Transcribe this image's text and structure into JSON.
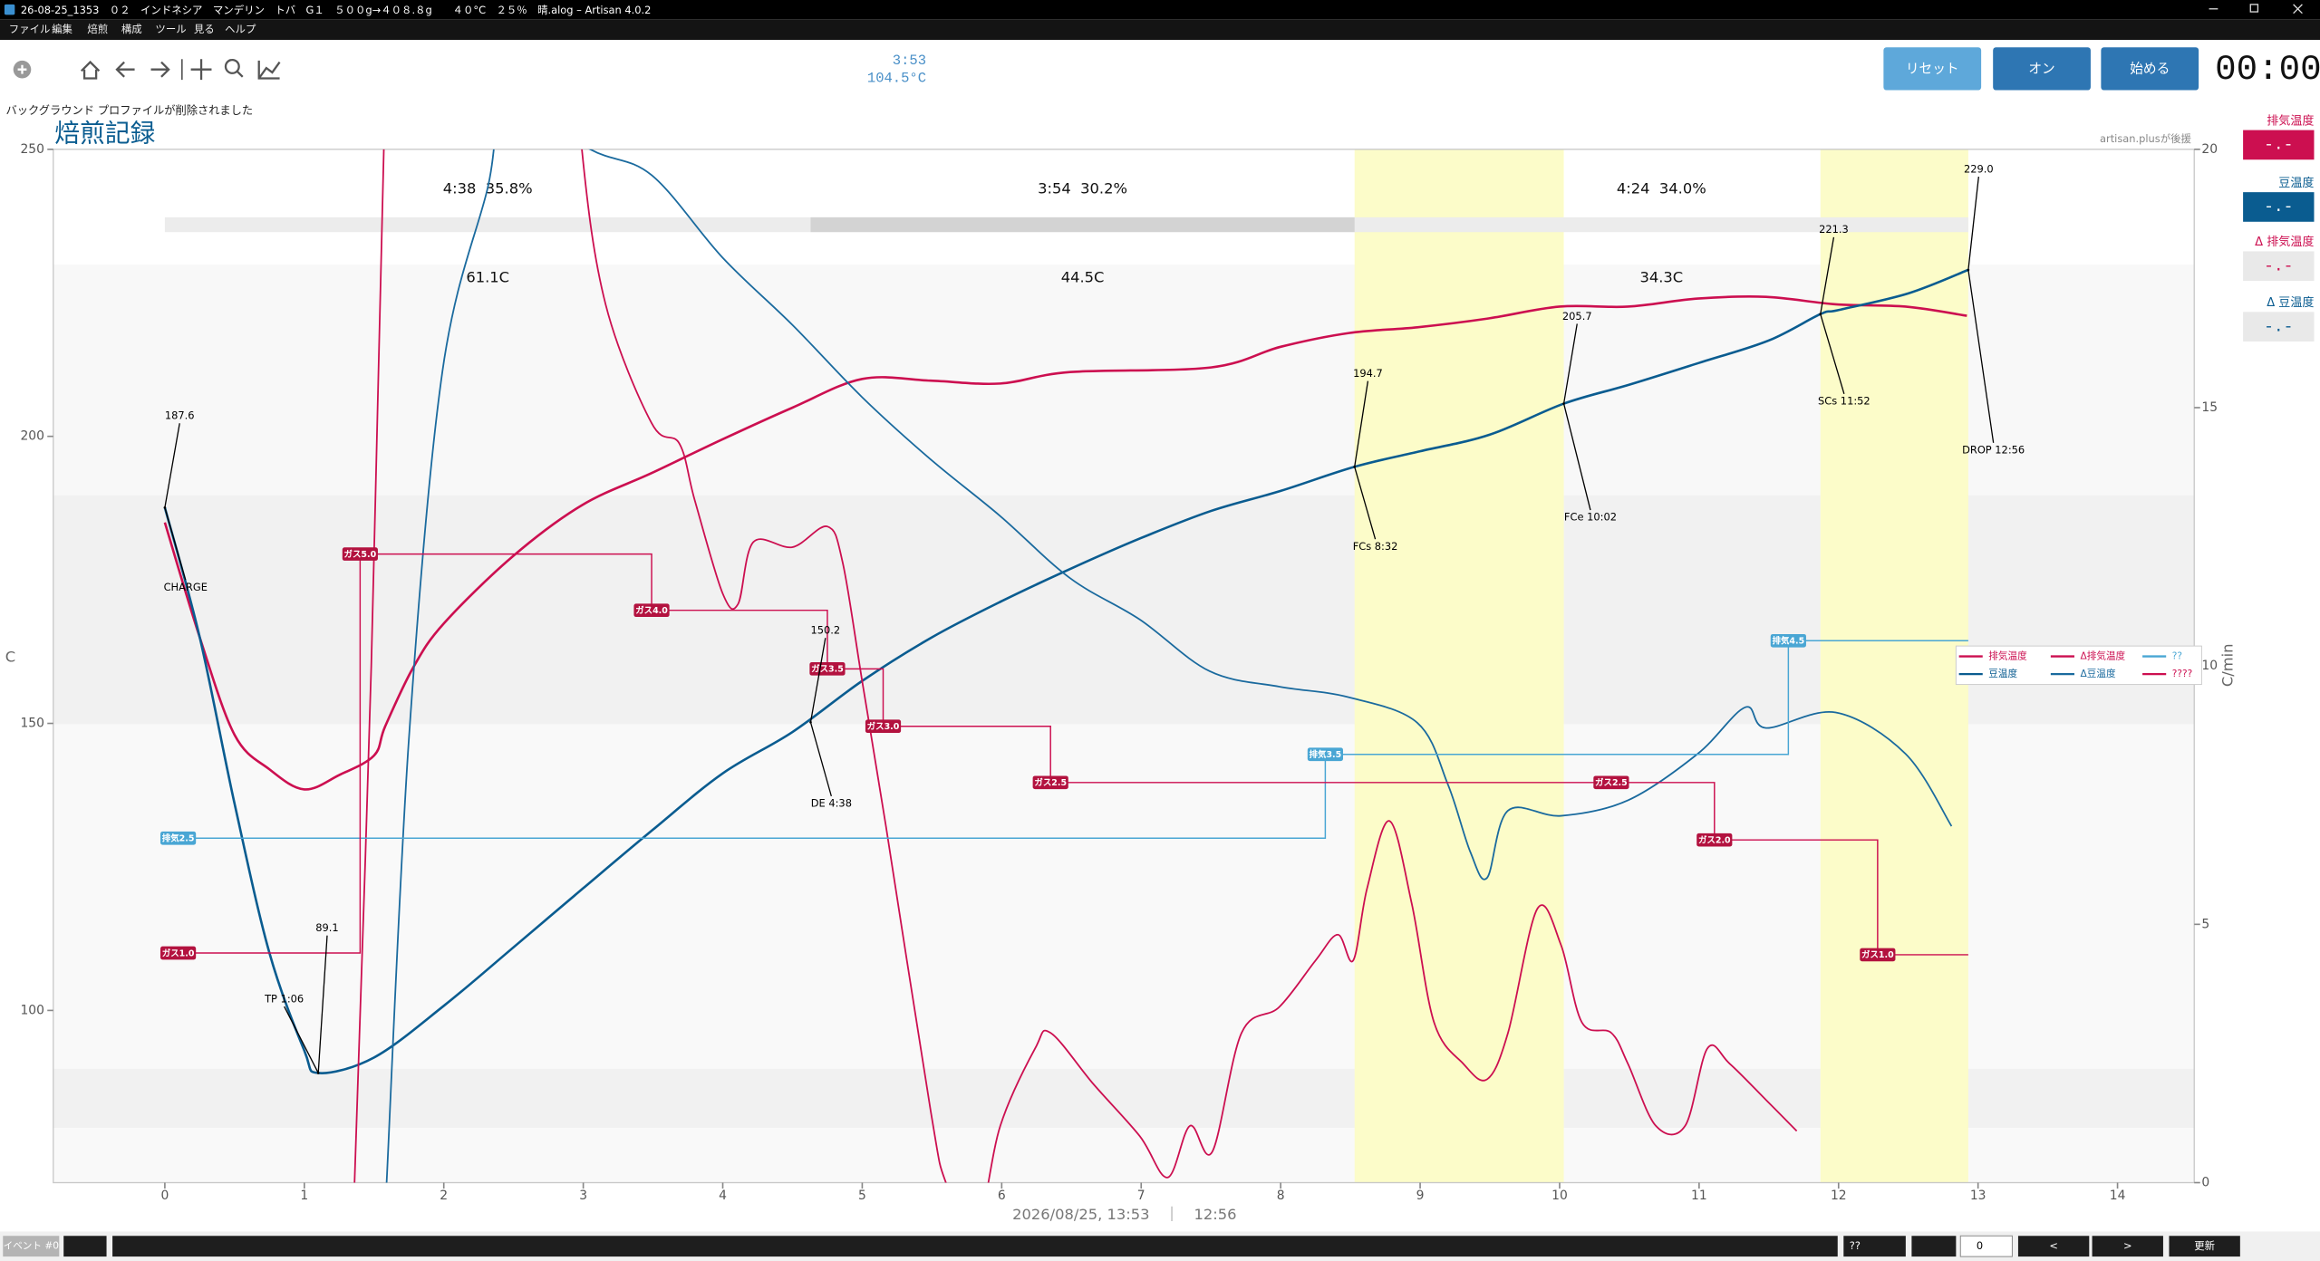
{
  "window": {
    "title": "26-08-25_1353　０２　インドネシア　マンデリン　トバ　G１　５００g→４０８.８g　　４０°C　２５％　晴.alog – Artisan 4.0.2",
    "menu": [
      "ファイル",
      "編集",
      "焙煎",
      "構成",
      "ツール",
      "見る",
      "ヘルプ"
    ]
  },
  "toolbar": {
    "readout_time": "3:53",
    "readout_temp": "104.5°C",
    "buttons": [
      "リセット",
      "オン",
      "始める"
    ],
    "timer": "00:00"
  },
  "status_message": "バックグラウンド プロファイルが削除されました",
  "lcds": [
    {
      "label": "排気温度",
      "value": "-.-"
    },
    {
      "label": "豆温度",
      "value": "-.-"
    },
    {
      "label": "Δ 排気温度",
      "value": "-.-"
    },
    {
      "label": "Δ 豆温度",
      "value": "-.-"
    }
  ],
  "chart_data": {
    "type": "line",
    "title": "焙煎記録",
    "sponsor": "artisan.plusが後援",
    "ylabel": "C",
    "y2label": "C/min",
    "xlabel": "2026/08/25, 13:53　｜　12:56",
    "xlim": [
      -0.8,
      14.55
    ],
    "ylim": [
      70,
      250
    ],
    "y2lim": [
      0,
      20
    ],
    "xticks": [
      0,
      1,
      2,
      3,
      4,
      5,
      6,
      7,
      8,
      9,
      10,
      11,
      12,
      13,
      14
    ],
    "yticks": [
      100,
      150,
      200,
      250
    ],
    "y2ticks": [
      0,
      5,
      10,
      15,
      20
    ],
    "grid": false,
    "legend": "right",
    "series": [
      {
        "name": "排気温度",
        "color": "#cc0f50",
        "x": [
          0,
          0.25,
          0.5,
          0.75,
          1,
          1.25,
          1.5,
          1.58,
          1.78,
          2,
          2.49,
          2.99,
          3.49,
          4,
          4.5,
          5,
          5.49,
          5.99,
          6.49,
          7.5,
          8,
          8.49,
          8.98,
          9.48,
          10,
          10.49,
          10.99,
          11.48,
          11.98,
          12.48,
          12.92
        ],
        "values": [
          185,
          165,
          148,
          142,
          138.5,
          141,
          144.4,
          149.5,
          159.7,
          167.4,
          179,
          188,
          193.6,
          199.5,
          205,
          210,
          209.7,
          209.2,
          211.2,
          212,
          215.6,
          218,
          219,
          220.5,
          222.6,
          222.6,
          224,
          224.3,
          223,
          222.6,
          221
        ]
      },
      {
        "name": "豆温度",
        "color": "#0a5c90",
        "x": [
          0,
          0.25,
          0.5,
          0.75,
          1,
          1.1,
          1.5,
          2,
          2.5,
          3,
          3.5,
          4,
          4.5,
          5,
          5.5,
          6,
          6.5,
          7,
          7.5,
          8,
          8.53,
          9,
          9.5,
          10.03,
          10.5,
          11,
          11.5,
          11.87,
          12,
          12.5,
          12.93
        ],
        "values": [
          187.6,
          165,
          136,
          110,
          93,
          89.1,
          91.8,
          100.8,
          111,
          121.3,
          131.5,
          141.3,
          148.5,
          157.4,
          165,
          171.3,
          177,
          182.3,
          187,
          190.5,
          194.7,
          197.4,
          200.3,
          205.7,
          209,
          212.8,
          216.7,
          221.3,
          222,
          224.9,
          229
        ]
      },
      {
        "name": "Δ排気温度",
        "color": "#cc0f50",
        "axis": "y2",
        "x": [
          1.36,
          1.48,
          1.57,
          1.65,
          2.9,
          2.99,
          3.16,
          3.49,
          3.69,
          3.8,
          4,
          4.11,
          4.22,
          4.5,
          4.75,
          4.86,
          5,
          5.17,
          5.49,
          5.6,
          5.81,
          5.99,
          6.24,
          6.35,
          6.66,
          6.99,
          7.19,
          7.35,
          7.51,
          7.72,
          7.99,
          8.25,
          8.41,
          8.52,
          8.62,
          8.78,
          8.94,
          9.1,
          9.31,
          9.48,
          9.63,
          9.84,
          10.01,
          10.16,
          10.37,
          10.49,
          10.69,
          10.9,
          11.06,
          11.22,
          11.48,
          11.7
        ],
        "values": [
          0,
          10,
          20,
          24,
          24,
          20,
          17,
          14.7,
          14.3,
          13.2,
          11.4,
          11.2,
          12.4,
          12.3,
          12.7,
          12,
          9.7,
          6.9,
          1.4,
          0,
          -1,
          1.1,
          2.6,
          2.9,
          1.9,
          0.9,
          0.1,
          1.1,
          0.6,
          2.9,
          3.4,
          4.3,
          4.8,
          4.3,
          5.7,
          7,
          5.4,
          3.1,
          2.3,
          2,
          2.9,
          5.3,
          4.6,
          3.1,
          2.9,
          2.3,
          1.1,
          1.1,
          2.6,
          2.3,
          1.6,
          1
        ]
      },
      {
        "name": "Δ豆温度",
        "color": "#1a6a9e",
        "axis": "y2",
        "x": [
          1.59,
          1.75,
          1.99,
          2.31,
          2.47,
          3.05,
          3.49,
          4,
          4.5,
          5,
          5.49,
          5.99,
          6.49,
          6.99,
          7.49,
          7.99,
          8.48,
          8.98,
          9.2,
          9.36,
          9.48,
          9.63,
          10.01,
          10.49,
          10.99,
          11.33,
          11.48,
          11.98,
          12.48,
          12.81
        ],
        "values": [
          0,
          8.6,
          15.7,
          19.2,
          21,
          20,
          19.5,
          17.9,
          16.6,
          15.2,
          14,
          12.9,
          11.7,
          10.9,
          9.9,
          9.6,
          9.4,
          8.9,
          7.7,
          6.4,
          5.9,
          7.2,
          7.1,
          7.4,
          8.3,
          9.2,
          8.8,
          9.1,
          8.3,
          6.9
        ]
      }
    ],
    "events": [
      {
        "name": "??",
        "color": "#49a6d4",
        "points": [
          {
            "label": "排気2.5",
            "x": 0,
            "y": 130
          },
          {
            "label": "排気3.5",
            "x": 8.32,
            "y": 144.6
          },
          {
            "label": "排気4.5",
            "x": 11.64,
            "y": 164.4
          }
        ]
      },
      {
        "name": "????",
        "color": "#cc0f50",
        "points": [
          {
            "label": "ガス1.0",
            "x": 0,
            "y": 110
          },
          {
            "label": "ガス5.0",
            "x": 1.4,
            "y": 179.5
          },
          {
            "label": "ガス4.0",
            "x": 3.49,
            "y": 169.7
          },
          {
            "label": "ガス3.5",
            "x": 4.75,
            "y": 159.5
          },
          {
            "label": "ガス3.0",
            "x": 5.15,
            "y": 149.5
          },
          {
            "label": "ガス2.5",
            "x": 6.35,
            "y": 139.7
          },
          {
            "label": "ガス2.5",
            "x": 10.37,
            "y": 139.7
          },
          {
            "label": "ガス2.0",
            "x": 11.11,
            "y": 129.7
          },
          {
            "label": "ガス1.0",
            "x": 12.28,
            "y": 109.7
          }
        ]
      }
    ],
    "annotations": [
      {
        "x": 0,
        "y": 187.6,
        "event": "CHARGE"
      },
      {
        "x": 1.1,
        "y": 89.1,
        "event": "TP 1:06"
      },
      {
        "x": 4.63,
        "y": 150.2,
        "event": "DE 4:38"
      },
      {
        "x": 8.53,
        "y": 194.7,
        "event": "FCs 8:32"
      },
      {
        "x": 10.03,
        "y": 205.7,
        "event": "FCe 10:02"
      },
      {
        "x": 11.87,
        "y": 221.3,
        "event": "SCs 11:52"
      },
      {
        "x": 12.93,
        "y": 229,
        "value_label": "229.0",
        "event": "DROP 12:56"
      }
    ],
    "phases": [
      {
        "label": "4:38  35.8%",
        "temp": "61.1C"
      },
      {
        "label": "3:54  30.2%",
        "temp": "44.5C"
      },
      {
        "label": "4:24  34.0%",
        "temp": "34.3C"
      }
    ]
  },
  "bottom_bar": {
    "event_label": "イベント #0",
    "dropdown": "??",
    "spin": "0",
    "prev": "<",
    "next": ">",
    "update": "更新"
  }
}
